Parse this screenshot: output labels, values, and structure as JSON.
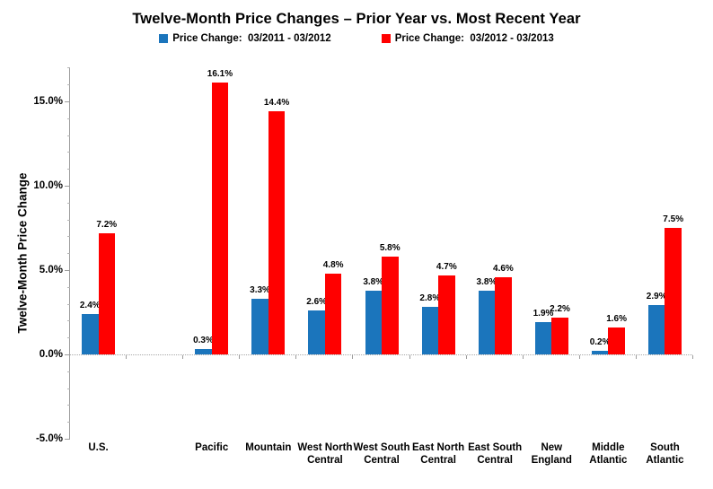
{
  "chart_data": {
    "type": "bar",
    "title": "Twelve-Month Price Changes – Prior Year vs. Most Recent Year",
    "ylabel": "Twelve-Month Price Change",
    "xlabel": "",
    "categories": [
      "U.S.",
      "",
      "Pacific",
      "Mountain",
      "West North Central",
      "West South Central",
      "East North Central",
      "East South Central",
      "New England",
      "Middle Atlantic",
      "South Atlantic"
    ],
    "series": [
      {
        "name": "Price Change:  03/2011 - 03/2012",
        "color": "#1B75BC",
        "values": [
          2.4,
          null,
          0.3,
          3.3,
          2.6,
          3.8,
          2.8,
          3.8,
          1.9,
          0.2,
          2.9
        ],
        "labels": [
          "2.4%",
          null,
          "0.3%",
          "3.3%",
          "2.6%",
          "3.8%",
          "2.8%",
          "3.8%",
          "1.9%",
          "0.2%",
          "2.9%"
        ]
      },
      {
        "name": "Price Change:  03/2012 - 03/2013",
        "color": "#FF0000",
        "values": [
          7.2,
          null,
          16.1,
          14.4,
          4.8,
          5.8,
          4.7,
          4.6,
          2.2,
          1.6,
          7.5
        ],
        "labels": [
          "7.2%",
          null,
          "16.1%",
          "14.4%",
          "4.8%",
          "5.8%",
          "4.7%",
          "4.6%",
          "2.2%",
          "1.6%",
          "7.5%"
        ]
      }
    ],
    "ylim": [
      -5,
      17
    ],
    "yticks": [
      {
        "value": 15,
        "label": "15.0%"
      },
      {
        "value": 10,
        "label": "10.0%"
      },
      {
        "value": 5,
        "label": "5.0%"
      },
      {
        "value": 0,
        "label": "0.0%"
      },
      {
        "value": -5,
        "label": "-5.0%"
      }
    ],
    "grid": "zero-line-only",
    "legend_position": "top-center"
  },
  "colors": {
    "axis": "#9C9C9C",
    "zero_line": "#A8A8A8",
    "text": "#000000",
    "background": "#FFFFFF"
  }
}
